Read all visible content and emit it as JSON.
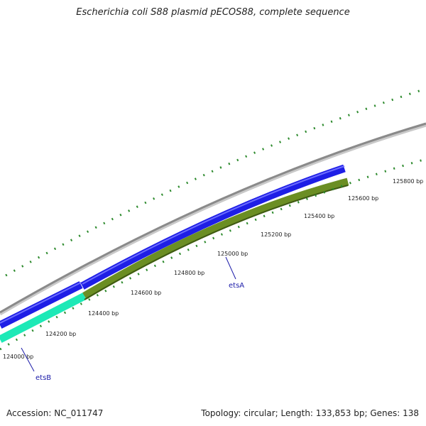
{
  "title": "Escherichia coli S88 plasmid pECOS88, complete sequence",
  "footer": {
    "accession": "Accession: NC_011747",
    "topology": "Topology: circular; Length: 133,853 bp; Genes: 138"
  },
  "colors": {
    "backbone": "#8a8a8a",
    "gene_forward": "#1e1ee6",
    "gene_reverse_a": "#6b8e23",
    "gene_reverse_b": "#1de9b6",
    "ticks": "#2e8b2e",
    "gene_label": "#1a1aa8"
  },
  "ticks": [
    {
      "label": "124000 bp"
    },
    {
      "label": "124200 bp"
    },
    {
      "label": "124400 bp"
    },
    {
      "label": "124600 bp"
    },
    {
      "label": "124800 bp"
    },
    {
      "label": "125000 bp"
    },
    {
      "label": "125200 bp"
    },
    {
      "label": "125400 bp"
    },
    {
      "label": "125600 bp"
    },
    {
      "label": "125800 bp"
    }
  ],
  "genes": [
    {
      "name": "etsA",
      "strand": "reverse"
    },
    {
      "name": "etsB",
      "strand": "reverse"
    }
  ]
}
